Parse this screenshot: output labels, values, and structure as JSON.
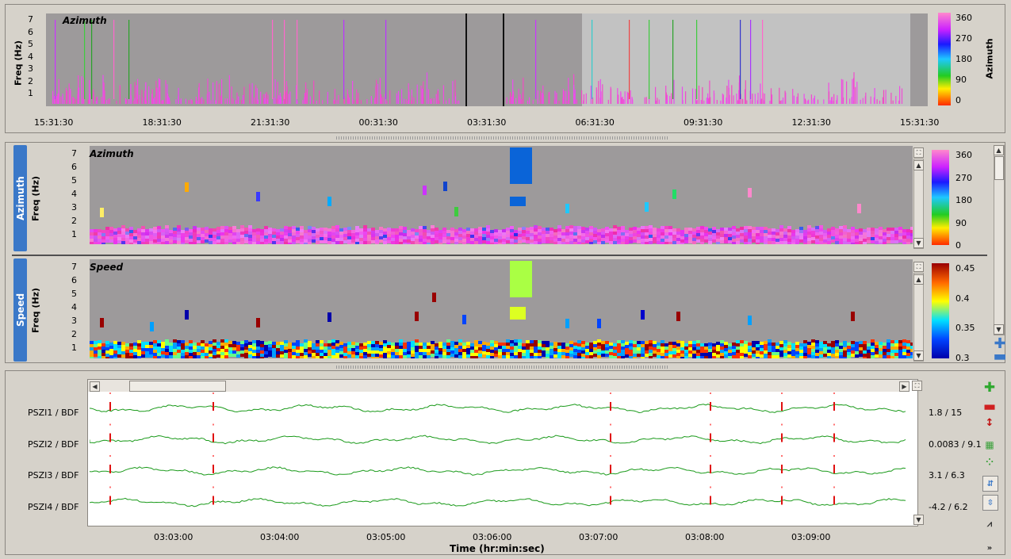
{
  "overview": {
    "title": "Azimuth",
    "ylabel": "Freq (Hz)",
    "yticks": [
      "7",
      "6",
      "5",
      "4",
      "3",
      "2",
      "1"
    ],
    "xticks": [
      "15:31:30",
      "18:31:30",
      "21:31:30",
      "00:31:30",
      "03:31:30",
      "06:31:30",
      "09:31:30",
      "12:31:30",
      "15:31:30"
    ],
    "colorbar_label": "Azimuth",
    "colorbar_ticks": [
      "360",
      "270",
      "180",
      "90",
      "0"
    ]
  },
  "azimuth_panel": {
    "tab": "Azimuth",
    "title": "Azimuth",
    "ylabel": "Freq (Hz)",
    "yticks": [
      "7",
      "6",
      "5",
      "4",
      "3",
      "2",
      "1"
    ],
    "colorbar_ticks": [
      "360",
      "270",
      "180",
      "90",
      "0"
    ]
  },
  "speed_panel": {
    "tab": "Speed",
    "title": "Speed",
    "ylabel": "Freq (Hz)",
    "yticks": [
      "7",
      "6",
      "5",
      "4",
      "3",
      "2",
      "1"
    ],
    "colorbar_ticks": [
      "0.45",
      "0.4",
      "0.35",
      "0.3"
    ]
  },
  "waveforms": {
    "channels": [
      {
        "name": "PSZI1 / BDF",
        "range": "1.8 / 15"
      },
      {
        "name": "PSZI2 / BDF",
        "range": "0.0083 / 9.1"
      },
      {
        "name": "PSZI3 / BDF",
        "range": "3.1 / 6.3"
      },
      {
        "name": "PSZI4 / BDF",
        "range": "-4.2 / 6.2"
      }
    ],
    "xticks": [
      "03:03:00",
      "03:04:00",
      "03:05:00",
      "03:06:00",
      "03:07:00",
      "03:08:00",
      "03:09:00"
    ],
    "xlabel": "Time (hr:min:sec)"
  },
  "colors": {
    "plot_bg": "#9d9a9b",
    "wave": "#1a9a1a",
    "pick": "#e01010",
    "tab_blue": "#3a78c8"
  }
}
